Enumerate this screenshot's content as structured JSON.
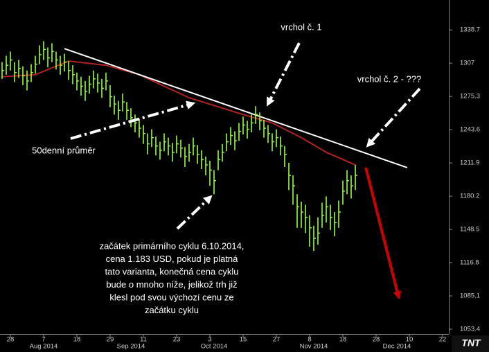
{
  "chart_data": {
    "type": "ohlc",
    "color": "#99ff33",
    "high": [
      1308,
      1314,
      1318,
      1308,
      1310,
      1304,
      1300,
      1306,
      1314,
      1324,
      1328,
      1322,
      1326,
      1318,
      1314,
      1316,
      1309,
      1305,
      1298,
      1294,
      1290,
      1295,
      1300,
      1297,
      1292,
      1298,
      1286,
      1276,
      1271,
      1278,
      1270,
      1264,
      1258,
      1254,
      1248,
      1240,
      1244,
      1237,
      1232,
      1240,
      1236,
      1231,
      1238,
      1234,
      1227,
      1230,
      1236,
      1229,
      1224,
      1218,
      1214,
      1205,
      1224,
      1230,
      1240,
      1246,
      1242,
      1250,
      1256,
      1252,
      1258,
      1266,
      1260,
      1253,
      1248,
      1240,
      1244,
      1237,
      1228,
      1212,
      1200,
      1182,
      1175,
      1172,
      1162,
      1152,
      1160,
      1174,
      1180,
      1172,
      1165,
      1176,
      1195,
      1205,
      1200,
      1210
    ],
    "low": [
      1292,
      1296,
      1300,
      1289,
      1293,
      1286,
      1281,
      1289,
      1297,
      1306,
      1310,
      1303,
      1308,
      1301,
      1296,
      1299,
      1291,
      1287,
      1281,
      1276,
      1271,
      1278,
      1283,
      1279,
      1274,
      1281,
      1265,
      1258,
      1253,
      1261,
      1253,
      1246,
      1241,
      1236,
      1230,
      1220,
      1227,
      1219,
      1215,
      1223,
      1219,
      1213,
      1221,
      1217,
      1208,
      1213,
      1219,
      1211,
      1206,
      1200,
      1190,
      1182,
      1205,
      1213,
      1223,
      1229,
      1224,
      1233,
      1239,
      1235,
      1241,
      1249,
      1243,
      1236,
      1231,
      1223,
      1227,
      1219,
      1208,
      1186,
      1172,
      1150,
      1150,
      1145,
      1132,
      1128,
      1134,
      1150,
      1155,
      1148,
      1142,
      1150,
      1172,
      1182,
      1178,
      1186
    ],
    "close": [
      1300,
      1305,
      1310,
      1298,
      1302,
      1295,
      1290,
      1298,
      1306,
      1315,
      1320,
      1312,
      1318,
      1310,
      1305,
      1308,
      1300,
      1296,
      1290,
      1285,
      1280,
      1287,
      1292,
      1288,
      1283,
      1290,
      1275,
      1268,
      1262,
      1270,
      1262,
      1255,
      1250,
      1245,
      1240,
      1230,
      1236,
      1228,
      1224,
      1232,
      1228,
      1222,
      1230,
      1226,
      1218,
      1222,
      1228,
      1220,
      1215,
      1210,
      1205,
      1195,
      1215,
      1222,
      1232,
      1238,
      1233,
      1242,
      1248,
      1244,
      1250,
      1258,
      1252,
      1245,
      1240,
      1232,
      1236,
      1228,
      1220,
      1200,
      1190,
      1170,
      1165,
      1160,
      1150,
      1140,
      1145,
      1162,
      1170,
      1160,
      1155,
      1165,
      1185,
      1195,
      1190,
      1200
    ],
    "moving_average": {
      "color": "#b22222",
      "x": [
        0,
        8,
        16,
        25,
        33,
        45,
        58,
        65,
        72,
        78,
        85
      ],
      "values": [
        1294,
        1296,
        1309,
        1305,
        1296,
        1274,
        1258,
        1250,
        1236,
        1222,
        1210
      ]
    },
    "trendline": {
      "color": "#ffffff",
      "x": [
        15,
        97.5
      ],
      "values": [
        1320.8,
        1207.4
      ]
    },
    "forecast": {
      "color": "#cc0000",
      "x": [
        87.5,
        95.3
      ],
      "values": [
        1207.4,
        1085.4
      ]
    },
    "xlim": [
      -0.5,
      107.5
    ],
    "xticks": [
      {
        "value": 2,
        "label": "28"
      },
      {
        "value": 10,
        "label": "7"
      },
      {
        "value": 18,
        "label": "18"
      },
      {
        "value": 26,
        "label": "29"
      },
      {
        "value": 34,
        "label": "11"
      },
      {
        "value": 42,
        "label": "23"
      },
      {
        "value": 50,
        "label": "3"
      },
      {
        "value": 58,
        "label": "15"
      },
      {
        "value": 66,
        "label": "27"
      },
      {
        "value": 74,
        "label": "8"
      },
      {
        "value": 82,
        "label": "18"
      },
      {
        "value": 90,
        "label": "28"
      },
      {
        "value": 98,
        "label": "10"
      },
      {
        "value": 106,
        "label": "22"
      }
    ],
    "month_labels": [
      {
        "value": 10,
        "label": "Aug 2014"
      },
      {
        "value": 31,
        "label": "Sep 2014"
      },
      {
        "value": 51,
        "label": "Oct 2014"
      },
      {
        "value": 75,
        "label": "Nov 2014"
      },
      {
        "value": 95,
        "label": "Dec 2014"
      }
    ],
    "ylim": [
      1048.8,
      1367.2
    ],
    "yticks": [
      1338.7,
      1307.0,
      1275.3,
      1243.6,
      1211.9,
      1180.2,
      1148.5,
      1116.8,
      1085.1,
      1053.4
    ],
    "annotations": {
      "peak1": "vrchol č. 1",
      "peak2": "vrchol č. 2 - ???",
      "average": "50denní průměr",
      "cycle": [
        "začátek primárního cyklu 6.10.2014,",
        "cena 1.183 USD, pokud je platná",
        "tato varianta, konečná cena cyklu",
        "bude o mnoho níže, jelikož trh již",
        "klesl pod svou výchozí cenu ze",
        "začátku cyklu"
      ]
    },
    "logo": "TNT"
  }
}
